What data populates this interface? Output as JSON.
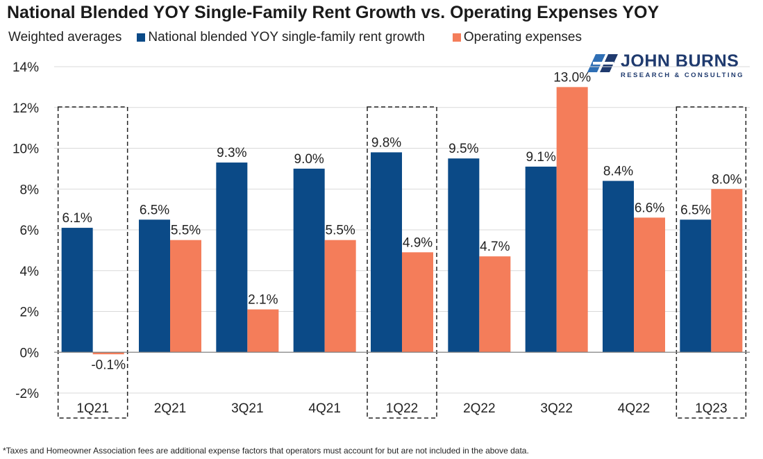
{
  "title": "National Blended YOY Single-Family Rent Growth vs. Operating Expenses YOY",
  "footnote": "*Taxes and Homeowner Association fees are additional expense factors that operators must account for but are not included in the above data.",
  "logo": {
    "brand": "JOHN BURNS",
    "tagline": "RESEARCH & CONSULTING"
  },
  "colors": {
    "rent": "#0b4a87",
    "opex": "#f47d5a",
    "grid": "#d9d9d9",
    "axis": "#808080",
    "highlight": "#222222"
  },
  "chart_data": {
    "type": "bar",
    "title": "National Blended YOY Single-Family Rent Growth vs. Operating Expenses YOY",
    "subtitle": "Weighted averages",
    "xlabel": "",
    "ylabel": "",
    "ylim": [
      -2,
      14
    ],
    "yticks": [
      -2,
      0,
      2,
      4,
      6,
      8,
      10,
      12,
      14
    ],
    "ytick_labels": [
      "-2%",
      "0%",
      "2%",
      "4%",
      "6%",
      "8%",
      "10%",
      "12%",
      "14%"
    ],
    "grid": true,
    "legend_position": "top",
    "categories": [
      "1Q21",
      "2Q21",
      "3Q21",
      "4Q21",
      "1Q22",
      "2Q22",
      "3Q22",
      "4Q22",
      "1Q23"
    ],
    "highlighted_categories": [
      "1Q21",
      "1Q22",
      "1Q23"
    ],
    "series": [
      {
        "name": "National blended YOY single-family rent growth",
        "values": [
          6.1,
          6.5,
          9.3,
          9.0,
          9.8,
          9.5,
          9.1,
          8.4,
          6.5
        ],
        "labels": [
          "6.1%",
          "6.5%",
          "9.3%",
          "9.0%",
          "9.8%",
          "9.5%",
          "9.1%",
          "8.4%",
          "6.5%"
        ]
      },
      {
        "name": "Operating expenses",
        "values": [
          -0.1,
          5.5,
          2.1,
          5.5,
          4.9,
          4.7,
          13.0,
          6.6,
          8.0
        ],
        "labels": [
          "-0.1%",
          "5.5%",
          "2.1%",
          "5.5%",
          "4.9%",
          "4.7%",
          "13.0%",
          "6.6%",
          "8.0%"
        ]
      }
    ]
  }
}
